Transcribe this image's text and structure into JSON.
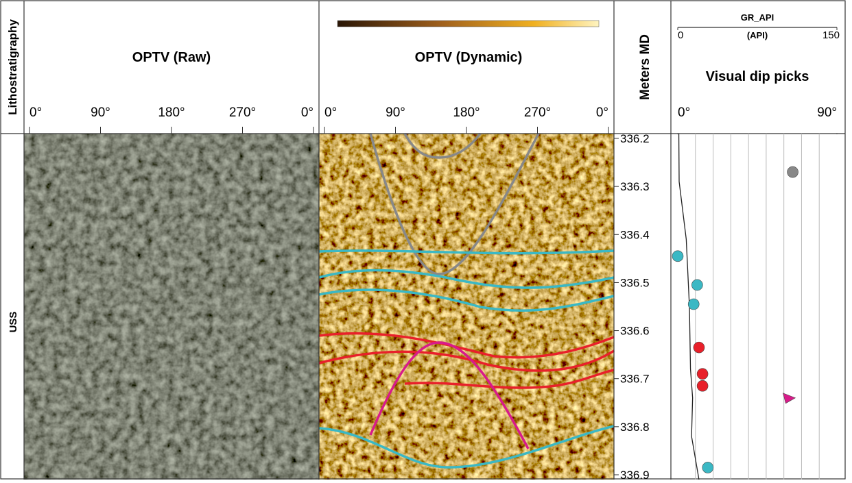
{
  "tracks": {
    "lithostratigraphy": {
      "title": "Lithostratigraphy",
      "unit": "USS"
    },
    "optv_raw": {
      "title": "OPTV (Raw)",
      "azimuth_ticks": [
        {
          "value": 0,
          "label": "0°"
        },
        {
          "value": 90,
          "label": "90°"
        },
        {
          "value": 180,
          "label": "180°"
        },
        {
          "value": 270,
          "label": "270°"
        },
        {
          "value": 360,
          "label": "0°"
        }
      ]
    },
    "optv_dynamic": {
      "title": "OPTV (Dynamic)",
      "azimuth_ticks": [
        {
          "value": 0,
          "label": "0°"
        },
        {
          "value": 90,
          "label": "90°"
        },
        {
          "value": 180,
          "label": "180°"
        },
        {
          "value": 270,
          "label": "270°"
        },
        {
          "value": 360,
          "label": "0°"
        }
      ]
    },
    "depth": {
      "title": "Meters MD"
    }
  },
  "chart_data": {
    "type": "scatter",
    "title": "Visual dip picks",
    "x": [
      65,
      0,
      11,
      9,
      12,
      14,
      14,
      63,
      17
    ],
    "y": [
      336.27,
      336.445,
      336.505,
      336.545,
      336.635,
      336.69,
      336.715,
      336.74,
      336.885
    ],
    "colors": [
      "#888888",
      "#3bb8c4",
      "#3bb8c4",
      "#3bb8c4",
      "#e8202a",
      "#e8202a",
      "#e8202a",
      "#d81b8a",
      "#3bb8c4"
    ],
    "markers": [
      "circle",
      "circle",
      "circle",
      "circle",
      "circle",
      "circle",
      "circle",
      "triangle",
      "circle"
    ],
    "xlim": [
      0,
      90
    ],
    "xticks": [
      {
        "value": 0,
        "label": "0°"
      },
      {
        "value": 90,
        "label": "90°"
      }
    ],
    "xgrid": [
      10,
      20,
      30,
      40,
      50,
      60,
      70,
      80
    ],
    "ylim": [
      336.19,
      336.91
    ],
    "yticks": [
      336.2,
      336.3,
      336.4,
      336.5,
      336.6,
      336.7,
      336.8,
      336.9
    ],
    "gr": {
      "name": "GR_API",
      "unit": "(API)",
      "color": "#222222",
      "xlim": [
        0,
        150
      ],
      "xticks": [
        0,
        150
      ],
      "x": [
        1,
        1.3,
        8,
        11,
        12,
        14,
        13,
        20
      ],
      "y": [
        336.19,
        336.29,
        336.41,
        336.55,
        336.68,
        336.74,
        336.82,
        336.91
      ]
    }
  }
}
